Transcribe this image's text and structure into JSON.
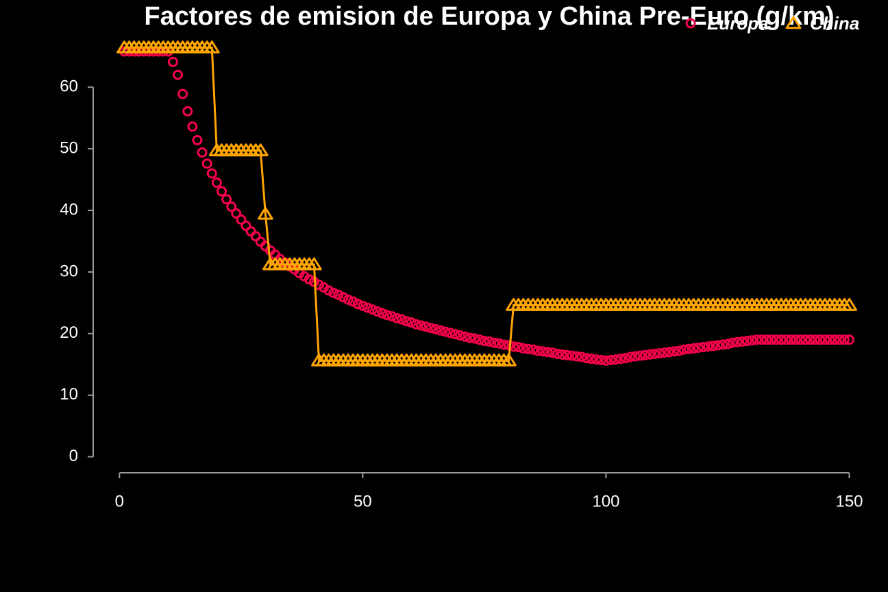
{
  "chart_data": {
    "type": "scatter",
    "title": "Factores de emision de Europa y China Pre-Euro (g/km)",
    "legend": "top-right",
    "xlim": [
      -5.4,
      155
    ],
    "ylim": [
      -2.6,
      68.7
    ],
    "xticks": [
      0,
      50,
      100,
      150
    ],
    "yticks": [
      0,
      10,
      20,
      30,
      40,
      50,
      60
    ],
    "x": [
      1,
      2,
      3,
      4,
      5,
      6,
      7,
      8,
      9,
      10,
      11,
      12,
      13,
      14,
      15,
      16,
      17,
      18,
      19,
      20,
      21,
      22,
      23,
      24,
      25,
      26,
      27,
      28,
      29,
      30,
      31,
      32,
      33,
      34,
      35,
      36,
      37,
      38,
      39,
      40,
      41,
      42,
      43,
      44,
      45,
      46,
      47,
      48,
      49,
      50,
      51,
      52,
      53,
      54,
      55,
      56,
      57,
      58,
      59,
      60,
      61,
      62,
      63,
      64,
      65,
      66,
      67,
      68,
      69,
      70,
      71,
      72,
      73,
      74,
      75,
      76,
      77,
      78,
      79,
      80,
      81,
      82,
      83,
      84,
      85,
      86,
      87,
      88,
      89,
      90,
      91,
      92,
      93,
      94,
      95,
      96,
      97,
      98,
      99,
      100,
      101,
      102,
      103,
      104,
      105,
      106,
      107,
      108,
      109,
      110,
      111,
      112,
      113,
      114,
      115,
      116,
      117,
      118,
      119,
      120,
      121,
      122,
      123,
      124,
      125,
      126,
      127,
      128,
      129,
      130,
      131,
      132,
      133,
      134,
      135,
      136,
      137,
      138,
      139,
      140,
      141,
      142,
      143,
      144,
      145,
      146,
      147,
      148,
      149,
      150
    ],
    "series": [
      {
        "name": "Europa",
        "color": "#f5004a",
        "marker": "circle",
        "line": false,
        "values": [
          65.8,
          65.8,
          65.8,
          65.8,
          65.8,
          65.8,
          65.8,
          65.8,
          65.8,
          65.8,
          64.1,
          62.0,
          58.9,
          56.1,
          53.6,
          51.4,
          49.4,
          47.6,
          46.0,
          44.5,
          43.1,
          41.8,
          40.6,
          39.5,
          38.5,
          37.5,
          36.6,
          35.8,
          34.9,
          34.2,
          33.5,
          32.8,
          32.1,
          31.5,
          30.9,
          30.4,
          29.8,
          29.3,
          28.8,
          28.4,
          27.9,
          27.5,
          27.0,
          26.6,
          26.3,
          25.9,
          25.5,
          25.2,
          24.8,
          24.5,
          24.2,
          23.9,
          23.6,
          23.3,
          23.0,
          22.8,
          22.5,
          22.3,
          22.0,
          21.8,
          21.5,
          21.3,
          21.1,
          20.9,
          20.7,
          20.5,
          20.3,
          20.1,
          19.9,
          19.7,
          19.5,
          19.3,
          19.2,
          19.0,
          18.8,
          18.7,
          18.5,
          18.4,
          18.2,
          18.1,
          17.9,
          17.8,
          17.6,
          17.5,
          17.4,
          17.2,
          17.1,
          17.0,
          16.9,
          16.7,
          16.6,
          16.5,
          16.4,
          16.3,
          16.2,
          16.0,
          15.9,
          15.8,
          15.7,
          15.6,
          15.7,
          15.8,
          15.9,
          16.0,
          16.2,
          16.3,
          16.4,
          16.5,
          16.6,
          16.7,
          16.8,
          16.9,
          17.0,
          17.1,
          17.2,
          17.4,
          17.5,
          17.6,
          17.7,
          17.8,
          17.9,
          18.0,
          18.1,
          18.2,
          18.3,
          18.5,
          18.6,
          18.7,
          18.8,
          18.9,
          19.0,
          19.0,
          19.0,
          19.0,
          19.0,
          19.0,
          19.0,
          19.0,
          19.0,
          19.0,
          19.0,
          19.0,
          19.0,
          19.0,
          19.0,
          19.0,
          19.0,
          19.0,
          19.0,
          19.0
        ]
      },
      {
        "name": "China",
        "color": "#ffa500",
        "marker": "triangle",
        "line": true,
        "values": [
          66.4,
          66.4,
          66.4,
          66.4,
          66.4,
          66.4,
          66.4,
          66.4,
          66.4,
          66.4,
          66.4,
          66.4,
          66.4,
          66.4,
          66.4,
          66.4,
          66.4,
          66.4,
          66.4,
          49.7,
          49.7,
          49.7,
          49.7,
          49.7,
          49.7,
          49.7,
          49.7,
          49.7,
          49.7,
          39.4,
          31.2,
          31.2,
          31.2,
          31.2,
          31.2,
          31.2,
          31.2,
          31.2,
          31.2,
          31.2,
          15.6,
          15.6,
          15.6,
          15.6,
          15.6,
          15.6,
          15.6,
          15.6,
          15.6,
          15.6,
          15.6,
          15.6,
          15.6,
          15.6,
          15.6,
          15.6,
          15.6,
          15.6,
          15.6,
          15.6,
          15.6,
          15.6,
          15.6,
          15.6,
          15.6,
          15.6,
          15.6,
          15.6,
          15.6,
          15.6,
          15.6,
          15.6,
          15.6,
          15.6,
          15.6,
          15.6,
          15.6,
          15.6,
          15.6,
          15.6,
          24.6,
          24.6,
          24.6,
          24.6,
          24.6,
          24.6,
          24.6,
          24.6,
          24.6,
          24.6,
          24.6,
          24.6,
          24.6,
          24.6,
          24.6,
          24.6,
          24.6,
          24.6,
          24.6,
          24.6,
          24.6,
          24.6,
          24.6,
          24.6,
          24.6,
          24.6,
          24.6,
          24.6,
          24.6,
          24.6,
          24.6,
          24.6,
          24.6,
          24.6,
          24.6,
          24.6,
          24.6,
          24.6,
          24.6,
          24.6,
          24.6,
          24.6,
          24.6,
          24.6,
          24.6,
          24.6,
          24.6,
          24.6,
          24.6,
          24.6,
          24.6,
          24.6,
          24.6,
          24.6,
          24.6,
          24.6,
          24.6,
          24.6,
          24.6,
          24.6,
          24.6,
          24.6,
          24.6,
          24.6,
          24.6,
          24.6,
          24.6,
          24.6,
          24.6,
          24.6
        ]
      }
    ]
  }
}
